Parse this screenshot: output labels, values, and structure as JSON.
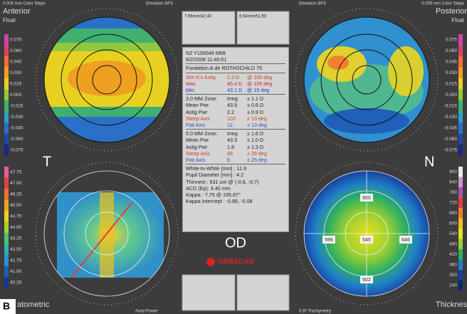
{
  "header": {
    "left_steps": "0.005 mm Color Steps",
    "left_title": "Anterior",
    "left_sub": "Float",
    "left_bfs": "Elevation BFS",
    "box1": "7.96mm/42.40",
    "box2": "8.54mm/51.60",
    "right_bfs": "Elevation BFS",
    "right_steps": "0.005 mm Color Steps",
    "right_title": "Posterior",
    "right_sub": "Float"
  },
  "scales": {
    "anterior": [
      "0.075",
      "0.060",
      "0.045",
      "0.030",
      "0.015",
      "0.000",
      "-0.015",
      "-0.030",
      "-0.045",
      "-0.060",
      "-0.075"
    ],
    "posterior": [
      "0.075",
      "0.060",
      "0.045",
      "0.030",
      "0.015",
      "0.000",
      "-0.015",
      "-0.030",
      "-0.045",
      "-0.060",
      "-0.075"
    ],
    "keratometric": [
      "47.75",
      "47.00",
      "46.25",
      "45.50",
      "44.75",
      "44.00",
      "43.25",
      "42.50",
      "41.75",
      "41.00",
      "40.25"
    ],
    "pachymetry": [
      "900",
      "840",
      "780",
      "720",
      "660",
      "600",
      "540",
      "480",
      "420",
      "360",
      "300",
      "240"
    ]
  },
  "markers": {
    "temporal": "T",
    "nasal": "N",
    "eye": "OD",
    "brand": "ORBSCAN",
    "panel": "B"
  },
  "panel": {
    "id": "N2 Y156546 M68",
    "date": "6/2/2008 11:45:01",
    "site": "Fondation A.de ROTHSCHILD 75",
    "rows": [
      [
        "Sim K's Astig",
        "2.3 D",
        "@ 105 deg"
      ],
      [
        "Max.",
        "45.4 D",
        "@ 105 deg"
      ],
      [
        "Min.",
        "43.1 D",
        "@ 15 deg"
      ],
      [
        "3.0 MM Zone:",
        "Irreg",
        "± 1.1 D"
      ],
      [
        "Mean Pwr",
        "43.9",
        "± 0.6 D"
      ],
      [
        "Astig Pwr",
        "2.2",
        "± 0.9 D"
      ],
      [
        "Steep Axis",
        "102",
        "± 13 deg"
      ],
      [
        "Flat Axis",
        "12",
        "± 13 deg"
      ],
      [
        "5.0 MM Zone:",
        "Irreg",
        "± 1.6 D"
      ],
      [
        "Mean Pwr",
        "43.3",
        "± 1.0 D"
      ],
      [
        "Astig Pwr",
        "1.8",
        "± 1.3 D"
      ],
      [
        "Steep Axis",
        "88",
        "± 28 deg"
      ],
      [
        "Flat Axis",
        "6",
        "± 25 deg"
      ]
    ],
    "notes": [
      "White-to-White [mm] : 11.9",
      "Pupil Diameter [mm] : 4.2",
      "Thinnest : 531 um @ (-0.6, -0.7)",
      "ACD (Ep): 3.40 mm",
      "Kappa : 7.75 @ 195.87°",
      "Kappa Intercept : -0.85, -0.08"
    ]
  },
  "pachy_points": [
    "650",
    "596",
    "545",
    "646",
    "602"
  ],
  "footer": {
    "left": "atometric",
    "axial": "Axial Power",
    "pachy": "0.97 Pachymetry",
    "right": "Thicknes"
  }
}
